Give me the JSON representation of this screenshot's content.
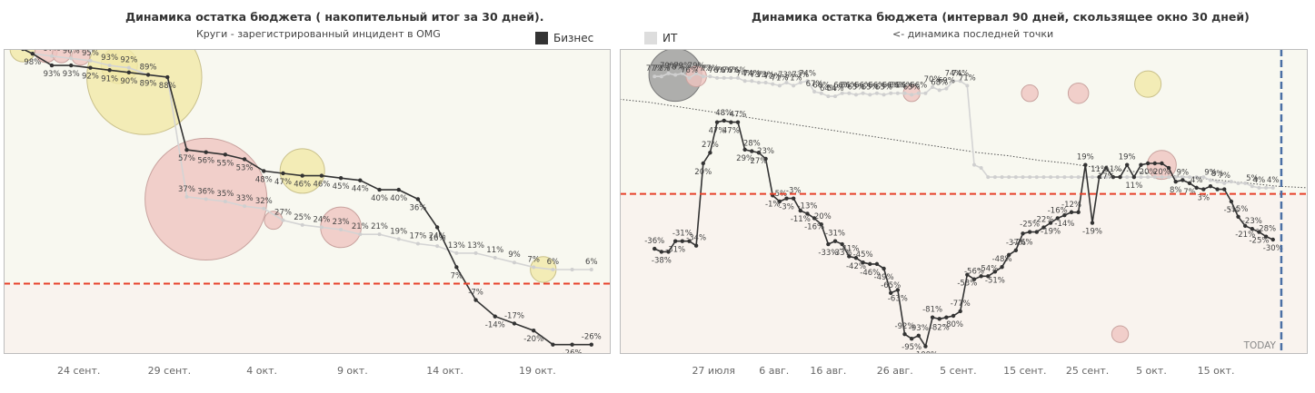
{
  "legend": {
    "business_label": "Бизнес",
    "business_color": "#333333",
    "it_label": "ИТ",
    "it_color": "#dddddd"
  },
  "colors": {
    "threshold": "#e8402a",
    "today_line": "#4a6fa5",
    "above_bg": "#f8f8f0",
    "below_bg": "#f9f3ee",
    "bubble_yellow": "#f1e9a8",
    "bubble_pink": "#efc4c0",
    "bubble_gray": "#9b9b9b"
  },
  "chart_data": [
    {
      "type": "line",
      "title": "Динамика остатка бюджета ( накопительный итог за 30  дней).",
      "subtitle": "Круги - зарегистрированный инцидент в OMG",
      "x_tick_labels": [
        "24 сент.",
        "29 сент.",
        "4 окт.",
        "9 окт.",
        "14 окт.",
        "19 окт."
      ],
      "ylim": [
        -30,
        100
      ],
      "threshold": 0,
      "series": [
        {
          "name": "Бизнес",
          "x": [
            20.5,
            21,
            22,
            23,
            24,
            25,
            26,
            27,
            28,
            29,
            30,
            31,
            32,
            33,
            34,
            35,
            36,
            37,
            38,
            39,
            40,
            41,
            42,
            43,
            44,
            45,
            46,
            47,
            48,
            49,
            50
          ],
          "values": [
            100,
            98,
            93,
            93,
            92,
            91,
            90,
            89,
            88,
            57,
            56,
            55,
            53,
            48,
            47,
            46,
            46,
            45,
            44,
            40,
            40,
            36,
            24,
            7,
            -7,
            -14,
            -17,
            -20,
            -26,
            -26,
            -26
          ],
          "labels": [
            "",
            "98%",
            "93%",
            "93%",
            "92%",
            "91%",
            "90%",
            "89%",
            "88%",
            "57%",
            "56%",
            "55%",
            "53%",
            "48%",
            "47%",
            "46%",
            "46%",
            "45%",
            "44%",
            "40%",
            "40%",
            "36%",
            "24%",
            "7%",
            "-7%",
            "-14%",
            "-17%",
            "-20%",
            "",
            "-26%",
            "-26%"
          ]
        },
        {
          "name": "ИТ",
          "x": [
            20.5,
            21,
            22,
            23,
            24,
            25,
            26,
            27,
            28,
            29,
            30,
            31,
            32,
            33,
            34,
            35,
            36,
            37,
            38,
            39,
            40,
            41,
            42,
            43,
            44,
            45,
            46,
            47,
            48,
            49,
            50
          ],
          "values": [
            100,
            98,
            97,
            96,
            95,
            93,
            92,
            89,
            88,
            37,
            36,
            35,
            33,
            32,
            27,
            25,
            24,
            23,
            21,
            21,
            19,
            17,
            16,
            13,
            13,
            11,
            9,
            7,
            6,
            6,
            6
          ],
          "labels": [
            "",
            "",
            "97%",
            "96%",
            "95%",
            "93%",
            "92%",
            "89%",
            "",
            "37%",
            "36%",
            "35%",
            "33%",
            "32%",
            "27%",
            "25%",
            "24%",
            "23%",
            "21%",
            "21%",
            "19%",
            "17%",
            "16%",
            "13%",
            "13%",
            "11%",
            "9%",
            "7%",
            "6%",
            "",
            "6%"
          ]
        }
      ],
      "incidents": [
        {
          "x": 20.5,
          "y": 100,
          "value": 2,
          "color": "yellow"
        },
        {
          "x": 21.7,
          "y": 99,
          "value": 1.5,
          "color": "pink"
        },
        {
          "x": 22.5,
          "y": 98,
          "value": 1,
          "color": "pink"
        },
        {
          "x": 23.5,
          "y": 97,
          "value": 1,
          "color": "pink"
        },
        {
          "x": 25.5,
          "y": 93,
          "value": 4,
          "color": "yellow"
        },
        {
          "x": 26.8,
          "y": 88,
          "value": 40,
          "color": "yellow"
        },
        {
          "x": 30,
          "y": 36,
          "value": 45,
          "color": "pink"
        },
        {
          "x": 33.5,
          "y": 27,
          "value": 1,
          "color": "pink"
        },
        {
          "x": 35,
          "y": 48,
          "value": 6,
          "color": "yellow"
        },
        {
          "x": 37,
          "y": 24,
          "value": 5,
          "color": "pink"
        },
        {
          "x": 47.5,
          "y": 6,
          "value": 2,
          "color": "yellow"
        }
      ]
    },
    {
      "type": "line",
      "title": "Динамика остатка бюджета (интервал 90 дней, скользящее окно 30 дней)",
      "subtitle": "<- динамика последней точки",
      "x_tick_labels": [
        "27 июля",
        "6 авг.",
        "16 авг.",
        "26 авг.",
        "5 сент.",
        "15 сент.",
        "25 сент.",
        "5 окт.",
        "15 окт."
      ],
      "ylim": [
        -105,
        95
      ],
      "threshold": 0,
      "today_label": "TODAY",
      "series": [
        {
          "name": "Бизнес",
          "x": [
            -9,
            -8,
            -7,
            -6,
            -5,
            -4,
            -3,
            -2,
            -1,
            0,
            1,
            2,
            3,
            4,
            5,
            6,
            7,
            8,
            9,
            10,
            11,
            12,
            13,
            14,
            15,
            16,
            17,
            18,
            19,
            20,
            21,
            22,
            23,
            24,
            25,
            26,
            27,
            28,
            29,
            30,
            31,
            32,
            33,
            34,
            35,
            36,
            37,
            38,
            39,
            40,
            41,
            42,
            43,
            44,
            45,
            46,
            47,
            48,
            49,
            50,
            51,
            52,
            53,
            54,
            55,
            56,
            57,
            58,
            59,
            60,
            61,
            62,
            63,
            64,
            65,
            66,
            67,
            68,
            69,
            70,
            71,
            72,
            73,
            74,
            75,
            76,
            77,
            78,
            79,
            80
          ],
          "values": [
            -36,
            -38,
            -38,
            -31,
            -31,
            -31,
            -34,
            20,
            27,
            47,
            48,
            47,
            47,
            29,
            28,
            27,
            23,
            -1,
            -5,
            -3,
            -3,
            -11,
            -13,
            -16,
            -20,
            -33,
            -31,
            -33,
            -41,
            -42,
            -45,
            -46,
            -46,
            -49,
            -65,
            -63,
            -92,
            -95,
            -93,
            -100,
            -81,
            -82,
            -81,
            -80,
            -77,
            -53,
            -56,
            -54,
            -54,
            -51,
            -48,
            -40,
            -37,
            -26,
            -25,
            -25,
            -22,
            -19,
            -16,
            -14,
            -12,
            -12,
            19,
            -19,
            11,
            17,
            11,
            11,
            19,
            11,
            19,
            20,
            20,
            20,
            17,
            8,
            9,
            7,
            4,
            3,
            5,
            3,
            3,
            -5,
            -15,
            -21,
            -23,
            -25,
            -28,
            -30
          ],
          "labels": [
            "-36%",
            "-38%",
            "",
            "-31%",
            "-31%",
            "",
            "-34%",
            "20%",
            "27%",
            "47%",
            "48%",
            "47%",
            "47%",
            "29%",
            "28%",
            "27%",
            "23%",
            "-1%",
            "-5%",
            "-3%",
            "-3%",
            "-11%",
            "-13%",
            "-16%",
            "-20%",
            "-33%",
            "-31%",
            "-33%",
            "-41%",
            "-42%",
            "-45%",
            "-46%",
            "",
            "-49%",
            "-65%",
            "-63%",
            "-92%",
            "-95%",
            "-93%",
            "-100%",
            "-81%",
            "-82%",
            "",
            "-80%",
            "-77%",
            "-53%",
            "-56%",
            "",
            "-54%",
            "-51%",
            "-48%",
            "",
            "-37%",
            "-26%",
            "-25%",
            "",
            "-22%",
            "-19%",
            "-16%",
            "-14%",
            "-12%",
            "",
            "19%",
            "-19%",
            "11%",
            "17%",
            "11%",
            "",
            "19%",
            "11%",
            "",
            "20%",
            "",
            "20%",
            "",
            "8%",
            "9%",
            "7%",
            "4%",
            "3%",
            "",
            "",
            "",
            "-5%",
            "-15%",
            "-21%",
            "-23%",
            "-25%",
            "-28%",
            "-30%"
          ]
        },
        {
          "name": "ИТ",
          "x": [
            -9,
            -8,
            -7,
            -6,
            -5,
            -4,
            -3,
            -2,
            -1,
            0,
            1,
            2,
            3,
            4,
            5,
            6,
            7,
            8,
            9,
            10,
            11,
            12,
            13,
            14,
            15,
            16,
            17,
            18,
            19,
            20,
            21,
            22,
            23,
            24,
            25,
            26,
            27,
            28,
            29,
            30,
            31,
            32,
            33,
            34,
            35,
            36,
            37,
            38,
            39,
            40,
            41,
            42,
            43,
            44,
            45,
            46,
            47,
            48,
            49,
            50,
            51,
            52,
            53,
            54,
            55,
            56,
            57,
            58,
            59,
            60,
            61,
            62,
            63,
            64,
            65,
            66,
            67,
            68,
            69,
            70,
            71,
            72,
            73,
            74,
            75,
            76,
            77,
            78,
            79,
            80
          ],
          "values": [
            77,
            77,
            79,
            78,
            79,
            76,
            79,
            77,
            77,
            76,
            76,
            76,
            76,
            74,
            74,
            73,
            73,
            72,
            71,
            73,
            71,
            73,
            74,
            67,
            66,
            64,
            64,
            66,
            66,
            65,
            66,
            65,
            66,
            65,
            66,
            66,
            66,
            65,
            66,
            66,
            70,
            68,
            69,
            74,
            74,
            71,
            19,
            17,
            11,
            11,
            11,
            11,
            11,
            11,
            11,
            11,
            11,
            11,
            11,
            11,
            11,
            11,
            11,
            11,
            11,
            11,
            11,
            11,
            11,
            11,
            11,
            11,
            11,
            11,
            11,
            11,
            11,
            11,
            11,
            11,
            9,
            8,
            7,
            8,
            7,
            7,
            5,
            4,
            4,
            4
          ],
          "labels": [
            "77%",
            "77%",
            "79%",
            "78%",
            "79%",
            "76%",
            "79%",
            "77%",
            "77%",
            "76%",
            "76%",
            "76%",
            "76%",
            "74%",
            "74%",
            "73%",
            "73%",
            "72%",
            "71%",
            "73%",
            "71%",
            "73%",
            "74%",
            "67%",
            "66%",
            "64%",
            "64%",
            "66%",
            "66%",
            "65%",
            "66%",
            "65%",
            "66%",
            "65%",
            "66%",
            "66%",
            "66%",
            "65%",
            "66%",
            "",
            "70%",
            "68%",
            "69%",
            "74%",
            "74%",
            "71%",
            "",
            "",
            "",
            "",
            "",
            "",
            "",
            "",
            "",
            "",
            "",
            "",
            "",
            "",
            "",
            "",
            "",
            "",
            "",
            "",
            "",
            "",
            "",
            "",
            "",
            "",
            "",
            "",
            "",
            "",
            "",
            "",
            "",
            "",
            "9%",
            "8%",
            "7%",
            "",
            "",
            "",
            "5%",
            "4%",
            "",
            "4%"
          ]
        }
      ],
      "trend_values": [
        62,
        60,
        57,
        54,
        51,
        48,
        45,
        42,
        39,
        36,
        33,
        30,
        27,
        25,
        22,
        20,
        17,
        15,
        13,
        11,
        9,
        7,
        5,
        4
      ],
      "incidents": [
        {
          "x": -6,
          "y": 78,
          "value": 20,
          "color": "gray"
        },
        {
          "x": -3,
          "y": 77,
          "value": 3,
          "color": "pink"
        },
        {
          "x": 28,
          "y": 66,
          "value": 2,
          "color": "pink"
        },
        {
          "x": 45,
          "y": 66,
          "value": 2,
          "color": "pink"
        },
        {
          "x": 52,
          "y": 66,
          "value": 3,
          "color": "pink"
        },
        {
          "x": 62,
          "y": 72,
          "value": 5,
          "color": "yellow"
        },
        {
          "x": 64,
          "y": 19,
          "value": 6,
          "color": "pink"
        },
        {
          "x": 58,
          "y": -92,
          "value": 2,
          "color": "pink"
        }
      ]
    }
  ]
}
